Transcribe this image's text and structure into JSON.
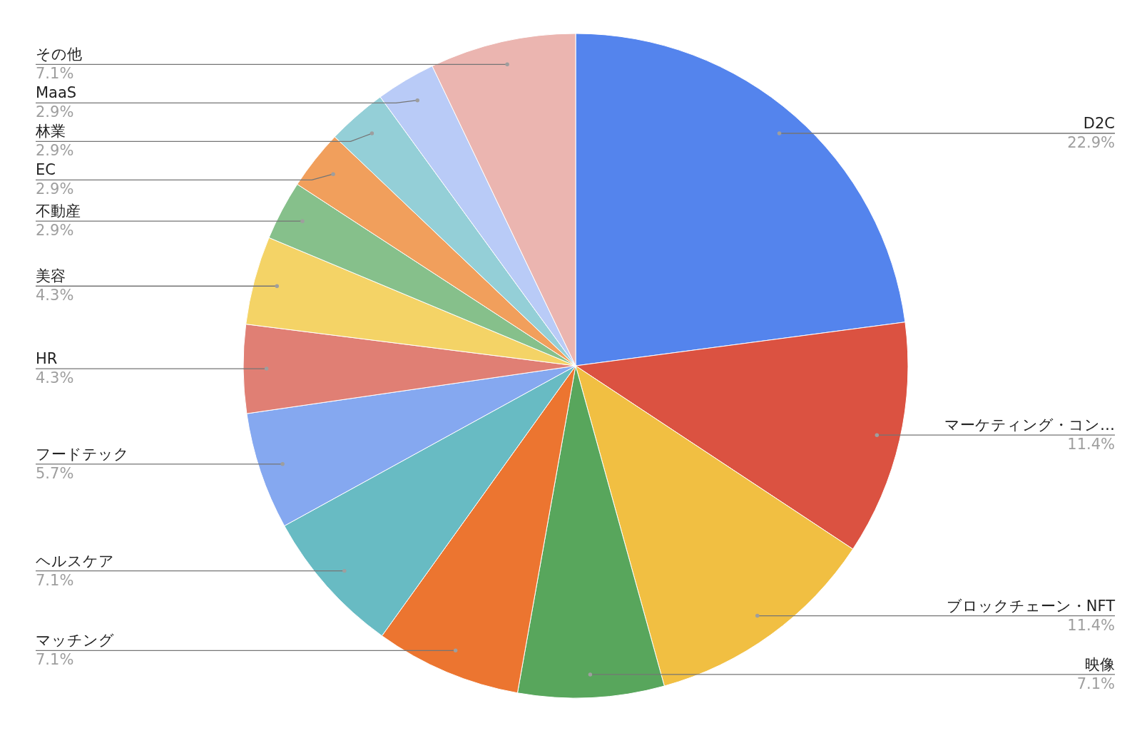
{
  "chart_data": {
    "type": "pie",
    "categories": [
      "D2C",
      "マーケティング・コン…",
      "ブロックチェーン・NFT",
      "映像",
      "マッチング",
      "ヘルスケア",
      "フードテック",
      "HR",
      "美容",
      "不動産",
      "EC",
      "林業",
      "MaaS",
      "その他"
    ],
    "values": [
      22.9,
      11.4,
      11.4,
      7.1,
      7.1,
      7.1,
      5.7,
      4.3,
      4.3,
      2.9,
      2.9,
      2.9,
      2.9,
      7.1
    ],
    "value_labels": [
      "22.9%",
      "11.4%",
      "11.4%",
      "7.1%",
      "7.1%",
      "7.1%",
      "5.7%",
      "4.3%",
      "4.3%",
      "2.9%",
      "2.9%",
      "2.9%",
      "2.9%",
      "7.1%"
    ],
    "colors": [
      "#5484ed",
      "#db5241",
      "#f1bf42",
      "#58a65c",
      "#ec7530",
      "#68bbc3",
      "#85a8f0",
      "#e07f74",
      "#f4d366",
      "#86c08b",
      "#f19f5c",
      "#94cfd7",
      "#b9cbf7",
      "#ebb5b0"
    ]
  }
}
